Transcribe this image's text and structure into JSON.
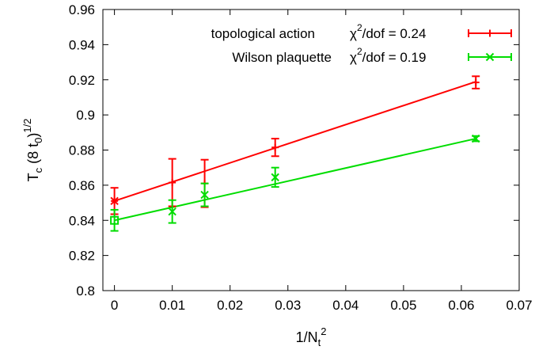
{
  "chart_data": {
    "type": "scatter",
    "xlim": [
      -0.002,
      0.07
    ],
    "ylim": [
      0.8,
      0.96
    ],
    "xticks": [
      0,
      0.01,
      0.02,
      0.03,
      0.04,
      0.05,
      0.06,
      0.07
    ],
    "yticks": [
      0.8,
      0.82,
      0.84,
      0.86,
      0.88,
      0.9,
      0.92,
      0.94,
      0.96
    ],
    "xtick_labels": [
      "0",
      "0.01",
      "0.02",
      "0.03",
      "0.04",
      "0.05",
      "0.06",
      "0.07"
    ],
    "ytick_labels": [
      "0.8",
      "0.82",
      "0.84",
      "0.86",
      "0.88",
      "0.9",
      "0.92",
      "0.94",
      "0.96"
    ],
    "xlabel": {
      "base": "1/N",
      "sub": "t",
      "sup": "2"
    },
    "ylabel": {
      "base": "T",
      "sub1": "c",
      "mid": " (8 t",
      "sub2": "0",
      "close": ")",
      "sup": "1/2"
    },
    "grid": false,
    "legend_position": "top-right",
    "series": [
      {
        "name": "topological action",
        "stat_label": "χ",
        "stat_sup": "2",
        "stat_rest": "/dof = 0.24",
        "color": "#ff0000",
        "marker": "plus",
        "points": [
          {
            "x": 0.01,
            "y": 0.8615,
            "err": 0.0135
          },
          {
            "x": 0.0156,
            "y": 0.861,
            "err": 0.0135
          },
          {
            "x": 0.0278,
            "y": 0.8815,
            "err": 0.005
          },
          {
            "x": 0.0625,
            "y": 0.9185,
            "err": 0.0035
          }
        ],
        "extrapolated": {
          "x": 0.0,
          "y": 0.851,
          "err": 0.0075,
          "marker": "star"
        },
        "fit": {
          "intercept": 0.851,
          "slope": 1.0864
        }
      },
      {
        "name": "Wilson plaquette",
        "stat_label": "χ",
        "stat_sup": "2",
        "stat_rest": "/dof = 0.19",
        "color": "#00dd00",
        "marker": "x",
        "points": [
          {
            "x": 0.01,
            "y": 0.845,
            "err": 0.0065
          },
          {
            "x": 0.0156,
            "y": 0.8545,
            "err": 0.0065
          },
          {
            "x": 0.0278,
            "y": 0.8645,
            "err": 0.0055
          },
          {
            "x": 0.0625,
            "y": 0.8865,
            "err": 0.0015
          }
        ],
        "extrapolated": {
          "x": 0.0,
          "y": 0.84,
          "err": 0.006,
          "marker": "square"
        },
        "fit": {
          "intercept": 0.84,
          "slope": 0.744
        }
      }
    ]
  }
}
